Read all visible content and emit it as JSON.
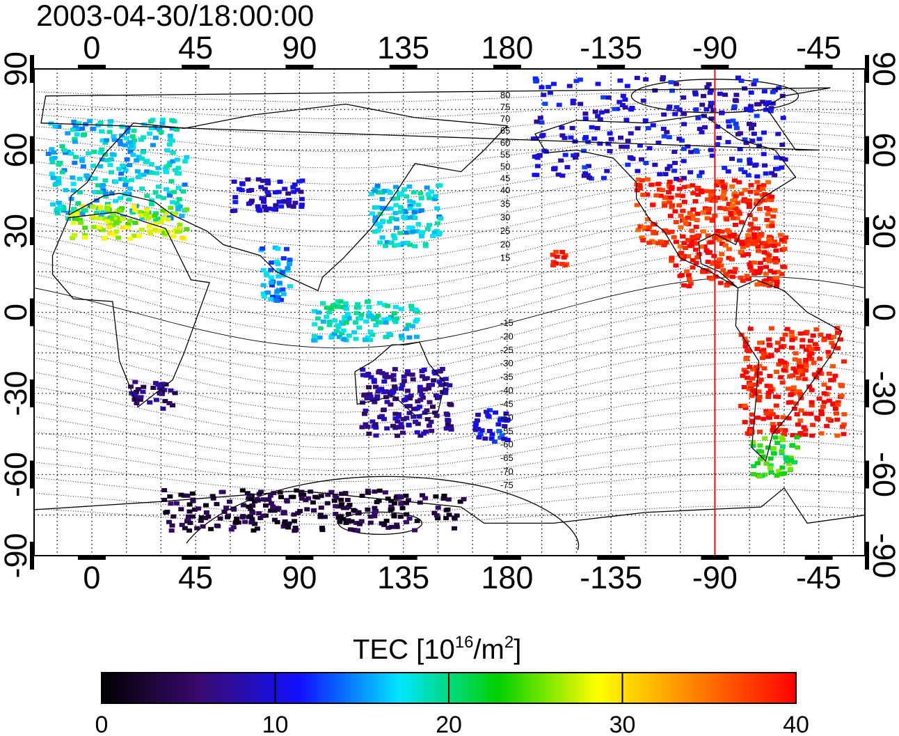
{
  "title": "2003-04-30/18:00:00",
  "map": {
    "top_lon_labels": [
      "0",
      "45",
      "90",
      "135",
      "180",
      "-135",
      "-90",
      "-45"
    ],
    "bottom_lon_labels": [
      "0",
      "45",
      "90",
      "135",
      "180",
      "-135",
      "-90",
      "-45"
    ],
    "left_lat_labels": [
      "90",
      "60",
      "30",
      "0",
      "-30",
      "-60",
      "-90"
    ],
    "right_lat_labels": [
      "90",
      "60",
      "30",
      "0",
      "-30",
      "-60",
      "-90"
    ],
    "lon_ticks": [
      0,
      45,
      90,
      135,
      180,
      225,
      270,
      315
    ],
    "lat_ticks": [
      90,
      60,
      30,
      0,
      -30,
      -60,
      -90
    ],
    "lon_range": [
      -25,
      335
    ],
    "lat_range": [
      -90,
      90
    ],
    "grid": "dotted, 15 degree spacing",
    "marker_line_longitude": -90,
    "marker_line_color": "#e01010",
    "contour_labels_north": [
      "80",
      "75",
      "70",
      "65",
      "60",
      "55",
      "50",
      "45",
      "40",
      "35",
      "30",
      "25",
      "20",
      "15"
    ],
    "contour_labels_south": [
      "-15",
      "-20",
      "-25",
      "-30",
      "-35",
      "-40",
      "-45",
      "-50",
      "-55",
      "-60",
      "-65",
      "-70",
      "-75"
    ]
  },
  "colorbar": {
    "title_main": "TEC  [10",
    "title_exp1": "16",
    "title_mid": "/m",
    "title_exp2": "2",
    "title_end": "]",
    "tick_labels": [
      "0",
      "10",
      "20",
      "30",
      "40"
    ],
    "range": [
      0,
      40
    ],
    "colors": [
      "#000000",
      "#3a0a70",
      "#1010ff",
      "#00e5ff",
      "#00d000",
      "#ffff00",
      "#ff8000",
      "#ff0000"
    ]
  },
  "tec_regions": [
    {
      "region": "North America mid-latitudes",
      "lon_range": [
        -125,
        -65
      ],
      "lat_range": [
        25,
        50
      ],
      "tec": 38
    },
    {
      "region": "North America north",
      "lon_range": [
        -170,
        -60
      ],
      "lat_range": [
        50,
        88
      ],
      "tec": 10
    },
    {
      "region": "Mexico / Caribbean",
      "lon_range": [
        -110,
        -60
      ],
      "lat_range": [
        10,
        30
      ],
      "tec": 39
    },
    {
      "region": "Hawaii",
      "lon_range": [
        -162,
        -154
      ],
      "lat_range": [
        18,
        24
      ],
      "tec": 39
    },
    {
      "region": "South America",
      "lon_range": [
        -80,
        -35
      ],
      "lat_range": [
        -45,
        -5
      ],
      "tec": 39
    },
    {
      "region": "Southern South America",
      "lon_range": [
        -75,
        -55
      ],
      "lat_range": [
        -60,
        -45
      ],
      "tec": 23
    },
    {
      "region": "Europe",
      "lon_range": [
        -20,
        40
      ],
      "lat_range": [
        35,
        72
      ],
      "tec": 17
    },
    {
      "region": "Southern Europe",
      "lon_range": [
        -10,
        40
      ],
      "lat_range": [
        28,
        40
      ],
      "tec": 27
    },
    {
      "region": "Japan / East Asia",
      "lon_range": [
        120,
        150
      ],
      "lat_range": [
        25,
        48
      ],
      "tec": 17
    },
    {
      "region": "Central Asia",
      "lon_range": [
        60,
        90
      ],
      "lat_range": [
        38,
        50
      ],
      "tec": 9
    },
    {
      "region": "India",
      "lon_range": [
        72,
        85
      ],
      "lat_range": [
        5,
        25
      ],
      "tec": 15
    },
    {
      "region": "Indonesia",
      "lon_range": [
        95,
        140
      ],
      "lat_range": [
        -10,
        5
      ],
      "tec": 18
    },
    {
      "region": "Australia",
      "lon_range": [
        115,
        155
      ],
      "lat_range": [
        -45,
        -20
      ],
      "tec": 7
    },
    {
      "region": "New Zealand",
      "lon_range": [
        165,
        180
      ],
      "lat_range": [
        -48,
        -35
      ],
      "tec": 11
    },
    {
      "region": "Southern Africa",
      "lon_range": [
        15,
        35
      ],
      "lat_range": [
        -35,
        -25
      ],
      "tec": 6
    },
    {
      "region": "Antarctica",
      "lon_range": [
        30,
        160
      ],
      "lat_range": [
        -80,
        -65
      ],
      "tec": 3
    }
  ]
}
